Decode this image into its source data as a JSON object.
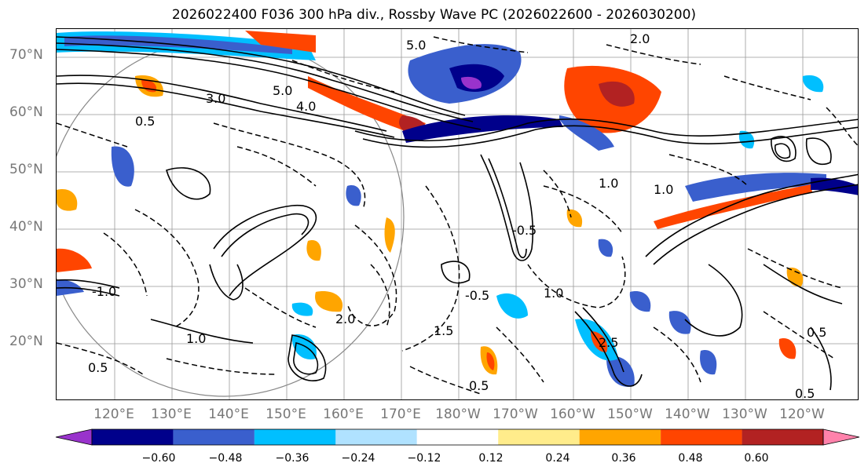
{
  "title": "2026022400 F036 300 hPa div., Rossby Wave PC (2026022600 - 2026030200)",
  "lat_labels": [
    "70°N",
    "60°N",
    "50°N",
    "40°N",
    "30°N",
    "20°N"
  ],
  "lon_labels": [
    "120°E",
    "130°E",
    "140°E",
    "150°E",
    "160°E",
    "170°E",
    "180°W",
    "170°W",
    "160°W",
    "150°W",
    "140°W",
    "130°W",
    "120°W"
  ],
  "colorbar": {
    "colors": [
      "#9933cc",
      "#00008b",
      "#3a5fcd",
      "#00bfff",
      "#b0e2ff",
      "#ffffff",
      "#ffec8b",
      "#ffa500",
      "#ff4500",
      "#b22222",
      "#ff82ab"
    ],
    "ticks": [
      "−0.60",
      "−0.48",
      "−0.36",
      "−0.24",
      "−0.12",
      "0.12",
      "0.24",
      "0.36",
      "0.48",
      "0.60"
    ]
  },
  "contour_labels": [
    "5.0",
    "5.0",
    "4.0",
    "3.0",
    "2.0",
    "1.0",
    "0.5",
    "-1.0",
    "-0.5",
    "0.5",
    "1.0",
    "2.0",
    "1.5",
    "0.5",
    "2.5",
    "-0.5",
    "1.0",
    "0.5",
    "1.0",
    "0.5"
  ]
}
